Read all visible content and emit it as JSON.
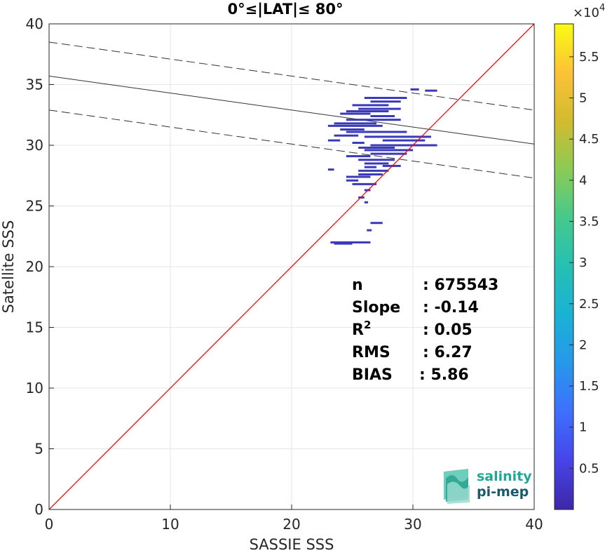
{
  "chart_data": {
    "type": "heatmap",
    "title": "0°≤|LAT|≤ 80°",
    "xlabel": "SASSIE SSS",
    "ylabel": "Satellite SSS",
    "xlim": [
      0,
      40
    ],
    "ylim": [
      0,
      40
    ],
    "xticks": [
      0,
      10,
      20,
      30,
      40
    ],
    "yticks": [
      0,
      5,
      10,
      15,
      20,
      25,
      30,
      35,
      40
    ],
    "grid": true,
    "colorbar": {
      "multiplier": "×10",
      "exponent": "4",
      "min": 0.0,
      "max": 5.9,
      "ticks": [
        "0.5",
        "1",
        "1.5",
        "2",
        "2.5",
        "3",
        "3.5",
        "4",
        "4.5",
        "5",
        "5.5"
      ],
      "colormap": [
        "#3e26a8",
        "#4744e9",
        "#3e6ffd",
        "#2797eb",
        "#1ab2d4",
        "#26bfb3",
        "#45c98d",
        "#8bcb55",
        "#d2bb2f",
        "#fcc237",
        "#f9fb14"
      ]
    },
    "identity_line": {
      "color": "#ff0000",
      "from": [
        0,
        0
      ],
      "to": [
        40,
        40
      ]
    },
    "fit_line": {
      "color": "#333333",
      "y_at_0": 35.7,
      "y_at_40": 30.1
    },
    "band_upper": {
      "color": "#333333",
      "y_at_0": 38.5,
      "y_at_40": 32.9
    },
    "band_lower": {
      "color": "#333333",
      "y_at_0": 32.9,
      "y_at_40": 27.3
    },
    "point_color": "#3a3ab8",
    "segments": [
      [
        29.8,
        30.5,
        34.6
      ],
      [
        31.0,
        32.0,
        34.5
      ],
      [
        26.0,
        29.5,
        33.9
      ],
      [
        26.5,
        29.0,
        33.6
      ],
      [
        25.0,
        28.0,
        33.3
      ],
      [
        25.5,
        29.0,
        33.0
      ],
      [
        24.5,
        28.0,
        32.8
      ],
      [
        24.0,
        26.5,
        32.6
      ],
      [
        26.5,
        28.5,
        32.4
      ],
      [
        24.5,
        29.0,
        32.1
      ],
      [
        23.5,
        27.0,
        31.8
      ],
      [
        23.0,
        27.5,
        31.6
      ],
      [
        24.0,
        26.0,
        31.3
      ],
      [
        24.5,
        29.5,
        31.1
      ],
      [
        23.5,
        25.5,
        30.8
      ],
      [
        26.0,
        31.5,
        30.7
      ],
      [
        27.5,
        31.0,
        30.4
      ],
      [
        23.0,
        24.0,
        30.4
      ],
      [
        25.0,
        26.0,
        30.2
      ],
      [
        26.5,
        32.0,
        30.0
      ],
      [
        25.5,
        28.5,
        29.8
      ],
      [
        26.0,
        30.0,
        29.6
      ],
      [
        26.5,
        29.5,
        29.3
      ],
      [
        24.5,
        26.5,
        29.1
      ],
      [
        25.5,
        28.5,
        28.8
      ],
      [
        26.0,
        28.0,
        28.5
      ],
      [
        27.5,
        29.0,
        28.3
      ],
      [
        26.0,
        27.0,
        28.2
      ],
      [
        23.0,
        23.5,
        28.0
      ],
      [
        25.5,
        28.0,
        27.9
      ],
      [
        25.5,
        27.5,
        27.6
      ],
      [
        24.5,
        26.5,
        27.4
      ],
      [
        24.5,
        25.5,
        27.1
      ],
      [
        25.0,
        27.0,
        26.8
      ],
      [
        26.0,
        26.5,
        26.3
      ],
      [
        25.5,
        26.0,
        25.7
      ],
      [
        26.0,
        26.3,
        25.3
      ],
      [
        26.5,
        27.5,
        23.6
      ],
      [
        26.2,
        26.6,
        23.0
      ],
      [
        23.2,
        26.5,
        22.0
      ],
      [
        23.5,
        25.0,
        21.9
      ]
    ],
    "stats": [
      {
        "label": "n",
        "sep": ":",
        "value": "675543"
      },
      {
        "label": "Slope",
        "sep": ":",
        "value": "-0.14"
      },
      {
        "label": "R",
        "sup": "2",
        "sep": ":",
        "value": "0.05"
      },
      {
        "label": "RMS",
        "sep": ":",
        "value": "6.27"
      },
      {
        "label": "BIAS",
        "sep": ":",
        "value": "5.86"
      }
    ]
  },
  "logo": {
    "line1": "salinity",
    "line2": "pi-mep",
    "color1": "#1fa896",
    "color2": "#1a5a6b"
  }
}
